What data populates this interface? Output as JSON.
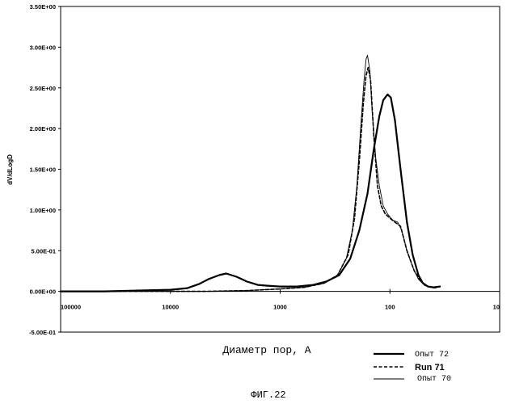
{
  "chart_data": {
    "type": "line",
    "title": "",
    "xlabel": "Диаметр пор, А",
    "ylabel": "dV/dLogD",
    "x_scale": "log",
    "x_reversed": true,
    "xlim": [
      100000,
      10
    ],
    "ylim": [
      -0.5,
      3.5
    ],
    "x_ticks": [
      {
        "value": 100000,
        "label": "100000"
      },
      {
        "value": 10000,
        "label": "10000"
      },
      {
        "value": 1000,
        "label": "1000"
      },
      {
        "value": 100,
        "label": "100"
      },
      {
        "value": 10,
        "label": "10"
      }
    ],
    "y_ticks": [
      {
        "value": 3.5,
        "label": "3.50E+00"
      },
      {
        "value": 3.0,
        "label": "3.00E+00"
      },
      {
        "value": 2.5,
        "label": "2.50E+00"
      },
      {
        "value": 2.0,
        "label": "2.00E+00"
      },
      {
        "value": 1.5,
        "label": "1.50E+00"
      },
      {
        "value": 1.0,
        "label": "1.00E+00"
      },
      {
        "value": 0.5,
        "label": "5.00E-01"
      },
      {
        "value": 0.0,
        "label": "0.00E+00"
      },
      {
        "value": -0.5,
        "label": "-5.00E-01"
      }
    ],
    "grid": false,
    "legend_position": "bottom-right",
    "series": [
      {
        "name": "Опыт 72",
        "style": "solid-thick",
        "points": [
          [
            100000,
            0.0
          ],
          [
            40000,
            0.0
          ],
          [
            20000,
            0.01
          ],
          [
            10000,
            0.02
          ],
          [
            7000,
            0.04
          ],
          [
            5500,
            0.09
          ],
          [
            4500,
            0.15
          ],
          [
            3600,
            0.2
          ],
          [
            3100,
            0.22
          ],
          [
            2500,
            0.18
          ],
          [
            2000,
            0.12
          ],
          [
            1600,
            0.08
          ],
          [
            1300,
            0.07
          ],
          [
            1000,
            0.06
          ],
          [
            700,
            0.06
          ],
          [
            500,
            0.08
          ],
          [
            380,
            0.12
          ],
          [
            290,
            0.2
          ],
          [
            230,
            0.4
          ],
          [
            190,
            0.75
          ],
          [
            160,
            1.2
          ],
          [
            140,
            1.75
          ],
          [
            125,
            2.15
          ],
          [
            115,
            2.35
          ],
          [
            105,
            2.42
          ],
          [
            98,
            2.38
          ],
          [
            90,
            2.1
          ],
          [
            80,
            1.5
          ],
          [
            70,
            0.85
          ],
          [
            62,
            0.45
          ],
          [
            55,
            0.2
          ],
          [
            50,
            0.1
          ],
          [
            45,
            0.06
          ],
          [
            40,
            0.05
          ],
          [
            35,
            0.06
          ]
        ]
      },
      {
        "name": "Run 71",
        "style": "dashed",
        "points": [
          [
            100000,
            0.0
          ],
          [
            20000,
            0.0
          ],
          [
            5000,
            0.0
          ],
          [
            2000,
            0.01
          ],
          [
            1000,
            0.03
          ],
          [
            600,
            0.05
          ],
          [
            400,
            0.1
          ],
          [
            300,
            0.2
          ],
          [
            240,
            0.45
          ],
          [
            210,
            0.9
          ],
          [
            190,
            1.6
          ],
          [
            175,
            2.3
          ],
          [
            165,
            2.65
          ],
          [
            158,
            2.75
          ],
          [
            150,
            2.6
          ],
          [
            140,
            1.9
          ],
          [
            130,
            1.3
          ],
          [
            120,
            1.05
          ],
          [
            110,
            0.95
          ],
          [
            100,
            0.9
          ],
          [
            90,
            0.85
          ],
          [
            80,
            0.8
          ],
          [
            70,
            0.5
          ],
          [
            60,
            0.25
          ],
          [
            52,
            0.12
          ],
          [
            45,
            0.06
          ],
          [
            38,
            0.04
          ]
        ]
      },
      {
        "name": "Опыт 70",
        "style": "solid-thin",
        "points": [
          [
            100000,
            0.0
          ],
          [
            20000,
            0.0
          ],
          [
            5000,
            0.0
          ],
          [
            2000,
            0.01
          ],
          [
            1000,
            0.03
          ],
          [
            600,
            0.05
          ],
          [
            400,
            0.1
          ],
          [
            300,
            0.2
          ],
          [
            250,
            0.4
          ],
          [
            220,
            0.75
          ],
          [
            200,
            1.3
          ],
          [
            185,
            2.0
          ],
          [
            172,
            2.6
          ],
          [
            165,
            2.85
          ],
          [
            160,
            2.9
          ],
          [
            152,
            2.7
          ],
          [
            145,
            2.2
          ],
          [
            135,
            1.65
          ],
          [
            125,
            1.3
          ],
          [
            115,
            1.05
          ],
          [
            105,
            0.95
          ],
          [
            95,
            0.88
          ],
          [
            85,
            0.85
          ],
          [
            78,
            0.75
          ],
          [
            70,
            0.5
          ],
          [
            62,
            0.3
          ],
          [
            55,
            0.15
          ],
          [
            48,
            0.07
          ],
          [
            42,
            0.05
          ],
          [
            38,
            0.04
          ]
        ]
      }
    ],
    "caption": "ФИГ.22"
  }
}
